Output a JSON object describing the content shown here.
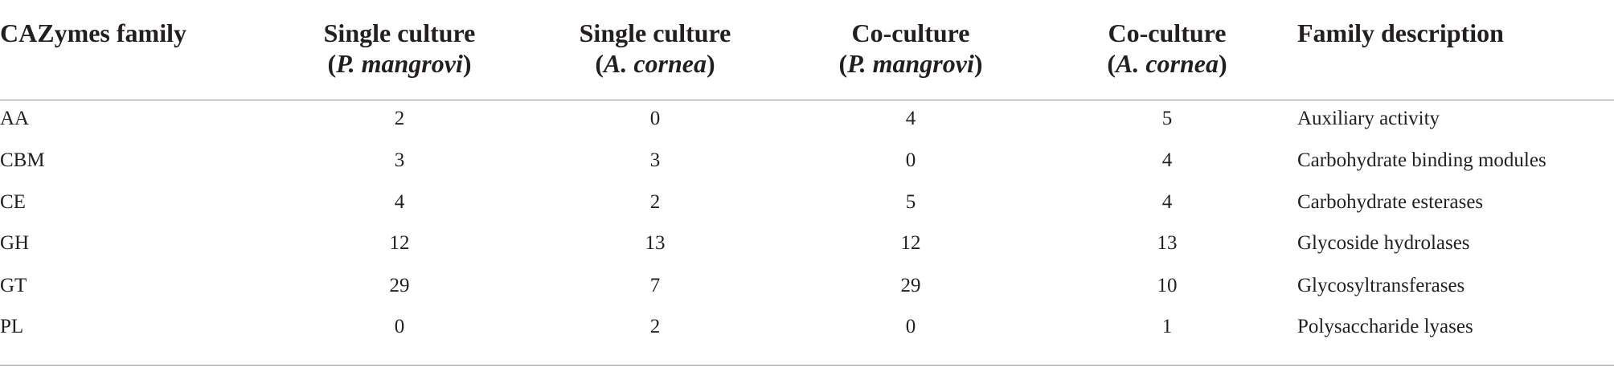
{
  "table": {
    "columns": [
      {
        "title": "CAZymes family"
      },
      {
        "title": "Single culture",
        "sub": [
          "(",
          "P. mangrovi",
          ")"
        ]
      },
      {
        "title": "Single culture",
        "sub": [
          "(",
          "A. cornea",
          ")"
        ]
      },
      {
        "title": "Co-culture",
        "sub": [
          "(",
          "P. mangrovi",
          ")"
        ]
      },
      {
        "title": "Co-culture",
        "sub": [
          "(",
          "A. cornea",
          ")"
        ]
      },
      {
        "title": "Family description"
      }
    ],
    "rows": [
      [
        "AA",
        2,
        0,
        4,
        5,
        "Auxiliary activity"
      ],
      [
        "CBM",
        3,
        3,
        0,
        4,
        "Carbohydrate binding modules"
      ],
      [
        "CE",
        4,
        2,
        5,
        4,
        "Carbohydrate esterases"
      ],
      [
        "GH",
        12,
        13,
        12,
        13,
        "Glycoside hydrolases"
      ],
      [
        "GT",
        29,
        7,
        29,
        10,
        "Glycosyltransferases"
      ],
      [
        "PL",
        0,
        2,
        0,
        1,
        "Polysaccharide lyases"
      ]
    ]
  }
}
